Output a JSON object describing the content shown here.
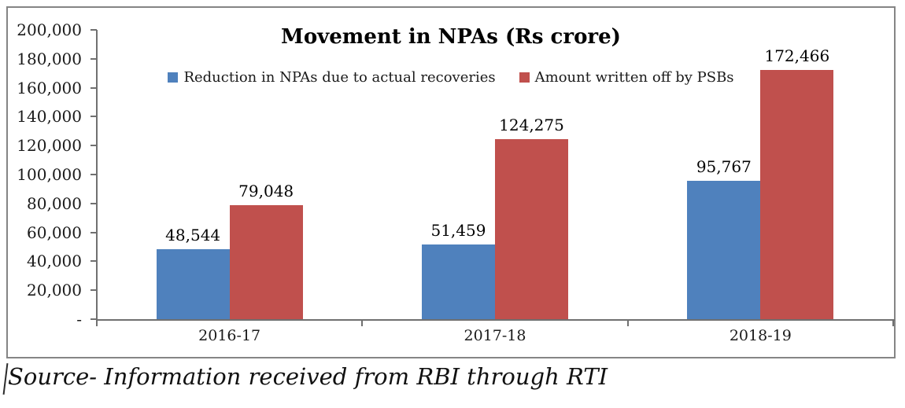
{
  "chart_data": {
    "type": "bar",
    "title": "Movement in NPAs (Rs crore)",
    "categories": [
      "2016-17",
      "2017-18",
      "2018-19"
    ],
    "series": [
      {
        "name": "Reduction in NPAs due to actual recoveries",
        "color": "#4F81BD",
        "values": [
          48544,
          51459,
          95767
        ],
        "labels": [
          "48,544",
          "51,459",
          "95,767"
        ]
      },
      {
        "name": "Amount written off by PSBs",
        "color": "#C0504D",
        "values": [
          79048,
          124275,
          172466
        ],
        "labels": [
          "79,048",
          "124,275",
          "172,466"
        ]
      }
    ],
    "xlabel": "",
    "ylabel": "",
    "ylim": [
      0,
      200000
    ],
    "ytick_step": 20000,
    "ytick_labels": [
      "-",
      "20,000",
      "40,000",
      "60,000",
      "80,000",
      "100,000",
      "120,000",
      "140,000",
      "160,000",
      "180,000",
      "200,000"
    ],
    "legend_position": "top-center",
    "grid": false
  },
  "source_note": "Source- Information received from RBI through RTI",
  "colors": {
    "series1_blue": "#4F81BD",
    "series2_red": "#C0504D",
    "axis_gray": "#707070",
    "frame_gray": "#858585",
    "background": "#FFFFFF"
  }
}
